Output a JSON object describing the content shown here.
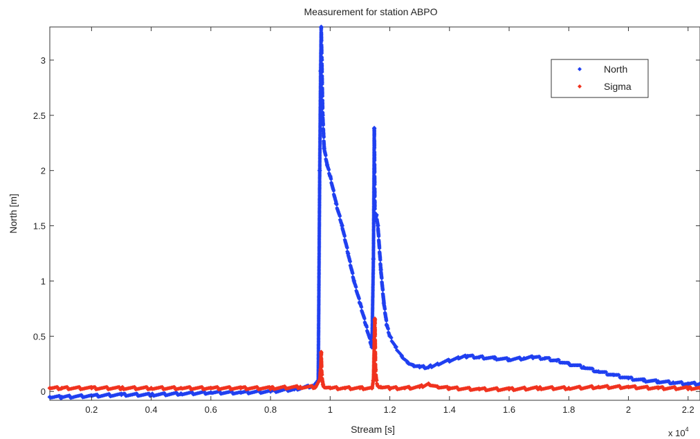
{
  "chart_data": {
    "type": "scatter",
    "title": "Measurement for station ABPO",
    "xlabel": "Stream [s]",
    "ylabel": "North [m]",
    "x_multiplier": "x 10",
    "x_multiplier_exponent": "4",
    "xlim": [
      600,
      22400
    ],
    "ylim": [
      -0.08,
      3.3
    ],
    "x_ticks": [
      2000,
      4000,
      6000,
      8000,
      10000,
      12000,
      14000,
      16000,
      18000,
      20000,
      22000
    ],
    "x_tick_labels": [
      "0.2",
      "0.4",
      "0.6",
      "0.8",
      "1",
      "1.2",
      "1.4",
      "1.6",
      "1.8",
      "2",
      "2.2"
    ],
    "y_ticks": [
      0,
      0.5,
      1,
      1.5,
      2,
      2.5,
      3
    ],
    "y_tick_labels": [
      "0",
      "0.5",
      "1",
      "1.5",
      "2",
      "2.5",
      "3"
    ],
    "grid": false,
    "legend_position": "top-right",
    "series": [
      {
        "name": "North",
        "color": "#1f3ff0",
        "marker": "diamond",
        "x": [
          600,
          1000,
          2000,
          3000,
          4000,
          5000,
          6000,
          7000,
          8000,
          8800,
          9400,
          9600,
          9650,
          9680,
          9700,
          9720,
          9750,
          9800,
          9900,
          10000,
          10200,
          10400,
          10600,
          10800,
          11000,
          11200,
          11400,
          11450,
          11480,
          11500,
          11520,
          11550,
          11600,
          11700,
          11800,
          11900,
          12000,
          12200,
          12400,
          12600,
          12800,
          13000,
          13300,
          13600,
          14000,
          14300,
          14600,
          15000,
          15500,
          16000,
          16500,
          16800,
          17200,
          17600,
          18000,
          18500,
          19000,
          19500,
          20000,
          20500,
          21000,
          21500,
          22000,
          22400
        ],
        "y": [
          -0.05,
          -0.05,
          -0.04,
          -0.03,
          -0.03,
          -0.02,
          -0.01,
          -0.01,
          0.0,
          0.02,
          0.05,
          0.1,
          2.0,
          2.9,
          3.3,
          3.0,
          2.5,
          2.2,
          2.05,
          1.95,
          1.7,
          1.5,
          1.25,
          1.0,
          0.8,
          0.6,
          0.4,
          1.2,
          2.38,
          1.6,
          1.55,
          1.6,
          1.5,
          1.1,
          0.8,
          0.6,
          0.5,
          0.4,
          0.32,
          0.26,
          0.23,
          0.22,
          0.22,
          0.25,
          0.28,
          0.3,
          0.32,
          0.31,
          0.3,
          0.29,
          0.3,
          0.31,
          0.3,
          0.28,
          0.25,
          0.22,
          0.18,
          0.15,
          0.12,
          0.1,
          0.09,
          0.08,
          0.07,
          0.07
        ]
      },
      {
        "name": "Sigma",
        "color": "#f0321e",
        "marker": "diamond",
        "x": [
          600,
          1000,
          2000,
          3000,
          4000,
          5000,
          6000,
          7000,
          8000,
          9000,
          9500,
          9650,
          9680,
          9700,
          9720,
          9760,
          9800,
          10000,
          10500,
          11000,
          11400,
          11450,
          11480,
          11500,
          11520,
          11550,
          11600,
          11700,
          12000,
          12500,
          13000,
          13300,
          13600,
          14000,
          15000,
          16000,
          17000,
          18000,
          19000,
          20000,
          21000,
          22000,
          22400
        ],
        "y": [
          0.03,
          0.03,
          0.03,
          0.03,
          0.03,
          0.03,
          0.03,
          0.03,
          0.03,
          0.04,
          0.04,
          0.1,
          0.2,
          0.35,
          0.15,
          0.06,
          0.04,
          0.03,
          0.03,
          0.03,
          0.03,
          0.1,
          0.47,
          0.65,
          0.2,
          0.1,
          0.05,
          0.04,
          0.03,
          0.03,
          0.04,
          0.07,
          0.04,
          0.03,
          0.02,
          0.02,
          0.03,
          0.03,
          0.04,
          0.04,
          0.03,
          0.03,
          0.03
        ]
      }
    ]
  }
}
